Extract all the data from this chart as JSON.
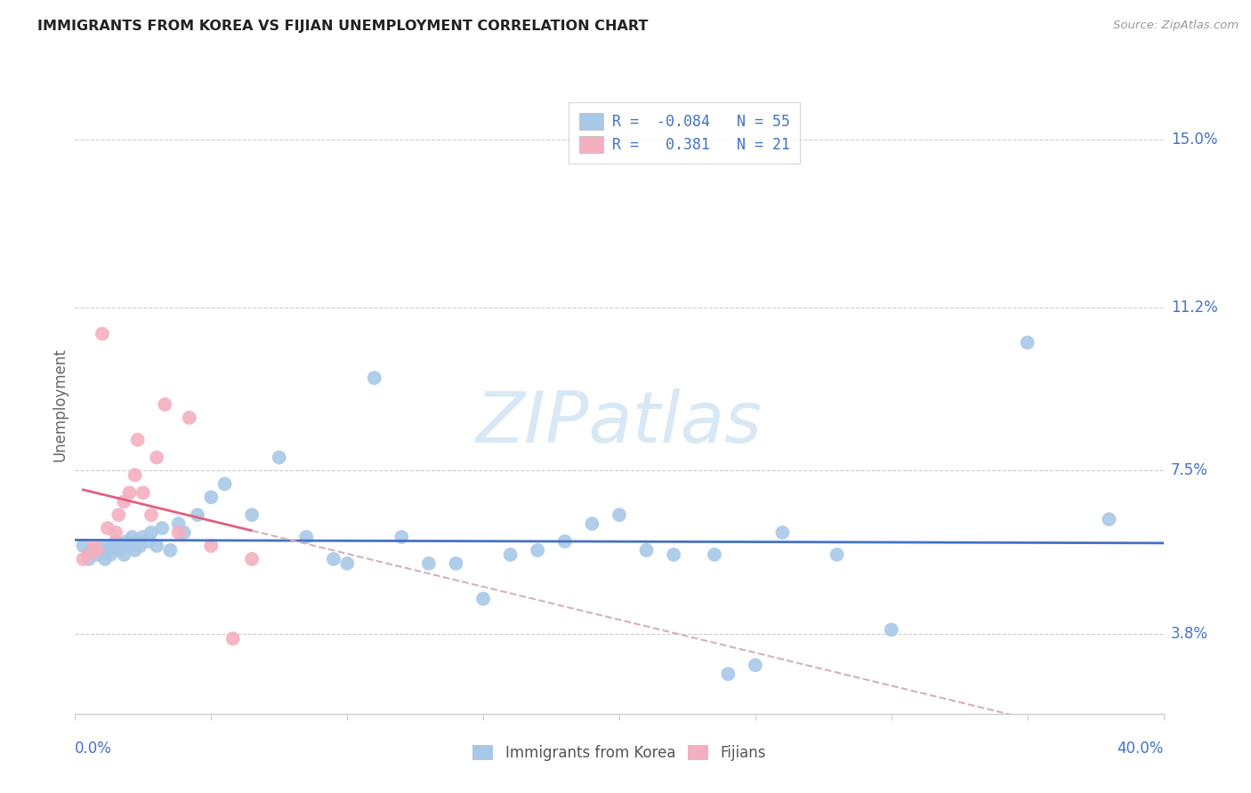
{
  "title": "IMMIGRANTS FROM KOREA VS FIJIAN UNEMPLOYMENT CORRELATION CHART",
  "source": "Source: ZipAtlas.com",
  "ylabel": "Unemployment",
  "yticks": [
    3.8,
    7.5,
    11.2,
    15.0
  ],
  "ytick_labels": [
    "3.8%",
    "7.5%",
    "11.2%",
    "15.0%"
  ],
  "xmin": 0.0,
  "xmax": 40.0,
  "ymin": 2.0,
  "ymax": 16.0,
  "color_korea": "#a8c8e8",
  "color_fijian": "#f4afc0",
  "color_korea_line": "#4472c4",
  "color_fijian_line": "#e06080",
  "color_fijian_dash": "#d4b0c0",
  "color_grid": "#cccccc",
  "color_axis_label": "#4472c4",
  "watermark_color": "#d8e8f4",
  "korea_scatter_x": [
    0.3,
    0.5,
    0.6,
    0.8,
    1.0,
    1.1,
    1.2,
    1.3,
    1.4,
    1.5,
    1.6,
    1.7,
    1.8,
    1.9,
    2.0,
    2.1,
    2.2,
    2.3,
    2.4,
    2.5,
    2.7,
    2.8,
    3.0,
    3.2,
    3.5,
    3.8,
    4.0,
    4.5,
    5.0,
    5.5,
    6.5,
    7.5,
    8.5,
    9.5,
    11.0,
    12.0,
    13.0,
    15.0,
    17.0,
    18.0,
    20.0,
    22.0,
    24.0,
    25.0,
    26.0,
    28.0,
    30.0,
    35.0,
    38.0,
    21.0,
    23.5,
    16.0,
    19.0,
    14.0,
    10.0
  ],
  "korea_scatter_y": [
    5.8,
    5.5,
    5.7,
    5.6,
    5.8,
    5.5,
    5.7,
    5.6,
    5.8,
    5.9,
    5.7,
    5.8,
    5.6,
    5.9,
    5.8,
    6.0,
    5.7,
    5.9,
    5.8,
    6.0,
    5.9,
    6.1,
    5.8,
    6.2,
    5.7,
    6.3,
    6.1,
    6.5,
    6.9,
    7.2,
    6.5,
    7.8,
    6.0,
    5.5,
    9.6,
    6.0,
    5.4,
    4.6,
    5.7,
    5.9,
    6.5,
    5.6,
    2.9,
    3.1,
    6.1,
    5.6,
    3.9,
    10.4,
    6.4,
    5.7,
    5.6,
    5.6,
    6.3,
    5.4,
    5.4
  ],
  "fijian_scatter_x": [
    0.3,
    0.5,
    0.7,
    0.8,
    1.0,
    1.2,
    1.5,
    1.6,
    1.8,
    2.0,
    2.2,
    2.5,
    2.8,
    3.0,
    3.3,
    3.8,
    4.2,
    5.0,
    5.8,
    6.5,
    2.3
  ],
  "fijian_scatter_y": [
    5.5,
    5.6,
    5.8,
    5.7,
    10.6,
    6.2,
    6.1,
    6.5,
    6.8,
    7.0,
    7.4,
    7.0,
    6.5,
    7.8,
    9.0,
    6.1,
    8.7,
    5.8,
    3.7,
    5.5,
    8.2
  ],
  "korea_r": -0.084,
  "korea_n": 55,
  "fijian_r": 0.381,
  "fijian_n": 21
}
